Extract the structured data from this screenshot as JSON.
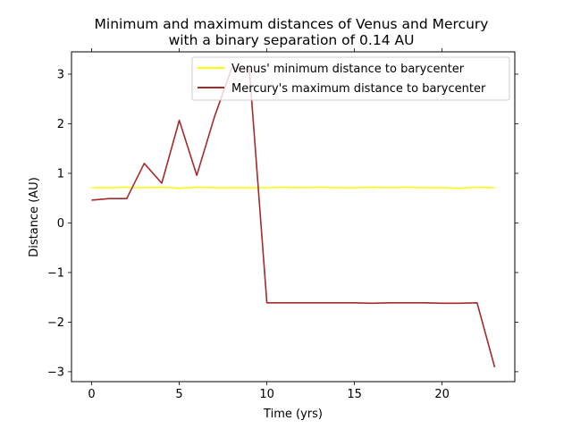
{
  "chart_data": {
    "type": "line",
    "title": [
      "Minimum and maximum distances of Venus and Mercury",
      "with a binary separation of 0.14 AU"
    ],
    "xlabel": "Time (yrs)",
    "ylabel": "Distance (AU)",
    "xlim": [
      -1.15,
      24.15
    ],
    "ylim": [
      -3.2,
      3.45
    ],
    "xticks": [
      0,
      5,
      10,
      15,
      20
    ],
    "yticks": [
      -3,
      -2,
      -1,
      0,
      1,
      2,
      3
    ],
    "ytick_labels": [
      "−3",
      "−2",
      "−1",
      "0",
      "1",
      "2",
      "3"
    ],
    "x": [
      0,
      1,
      2,
      3,
      4,
      5,
      6,
      7,
      8,
      9,
      10,
      11,
      12,
      13,
      14,
      15,
      16,
      17,
      18,
      19,
      20,
      21,
      22,
      23
    ],
    "series": [
      {
        "name": "Venus' minimum distance to barycenter",
        "color": "#ffff00",
        "values": [
          0.71,
          0.71,
          0.72,
          0.71,
          0.72,
          0.7,
          0.72,
          0.71,
          0.71,
          0.71,
          0.71,
          0.72,
          0.71,
          0.72,
          0.71,
          0.71,
          0.72,
          0.71,
          0.72,
          0.71,
          0.71,
          0.7,
          0.72,
          0.71
        ]
      },
      {
        "name": "Mercury's maximum distance to barycenter",
        "color": "#a52a2a",
        "values": [
          0.46,
          0.49,
          0.49,
          1.2,
          0.8,
          2.07,
          0.96,
          2.13,
          3.13,
          3.1,
          -1.61,
          -1.61,
          -1.61,
          -1.61,
          -1.61,
          -1.61,
          -1.62,
          -1.61,
          -1.61,
          -1.61,
          -1.62,
          -1.62,
          -1.61,
          -2.91
        ]
      }
    ],
    "legend_position": "top-right",
    "grid": false
  }
}
